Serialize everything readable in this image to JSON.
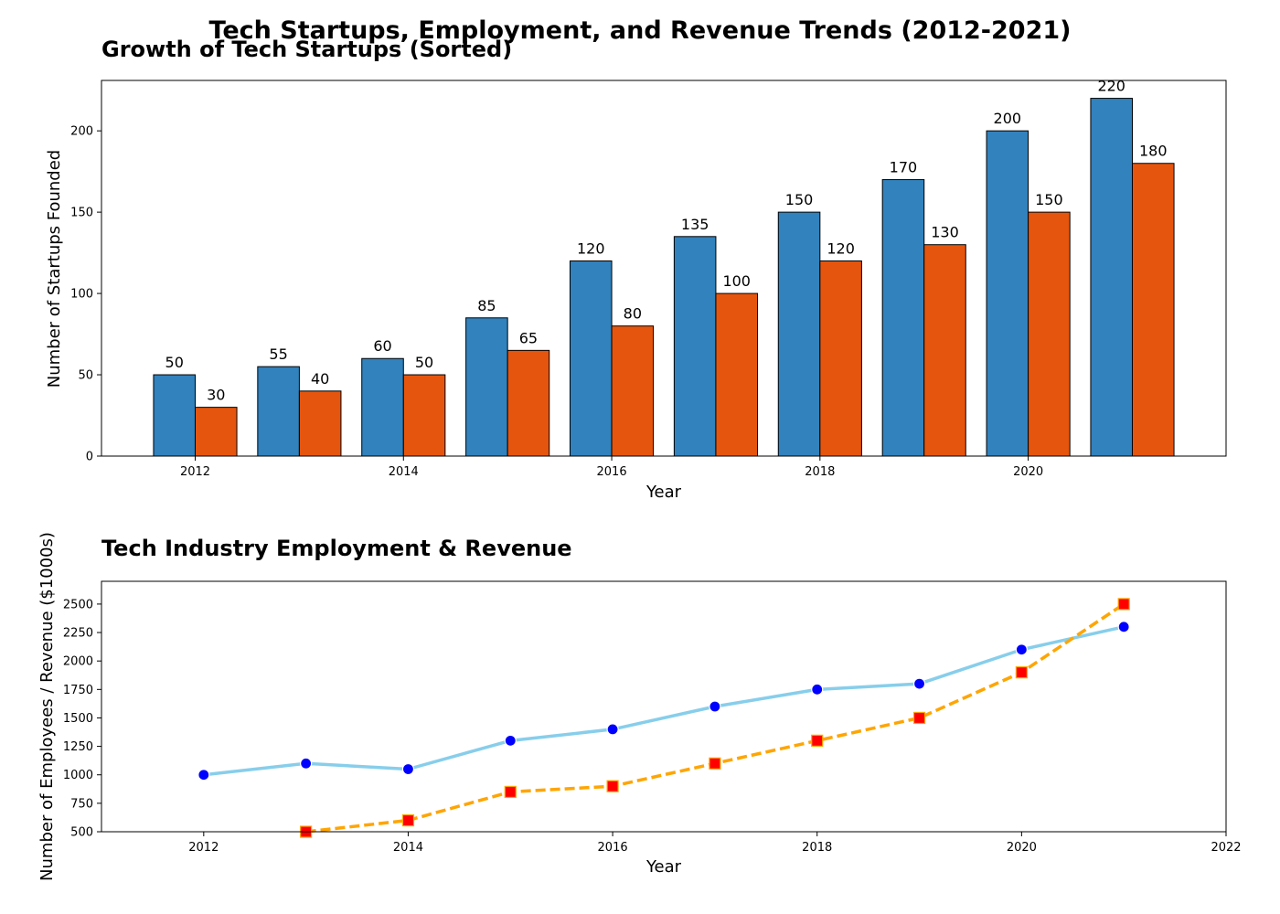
{
  "figure": {
    "suptitle": "Tech Startups, Employment, and Revenue Trends (2012-2021)"
  },
  "chart_data": [
    {
      "type": "bar",
      "title": "Growth of Tech Startups (Sorted)",
      "xlabel": "Year",
      "ylabel": "Number of Startups Founded",
      "x": [
        2012,
        2013,
        2014,
        2015,
        2016,
        2017,
        2018,
        2019,
        2020,
        2021
      ],
      "xticks": [
        2012,
        2014,
        2016,
        2018,
        2020
      ],
      "xlim": [
        2011.1,
        2021.9
      ],
      "ylim": [
        0,
        231
      ],
      "yticks": [
        0,
        50,
        100,
        150,
        200
      ],
      "grid": false,
      "series": [
        {
          "values": [
            50,
            55,
            60,
            85,
            120,
            135,
            150,
            170,
            200,
            220
          ],
          "color": "#3182bd"
        },
        {
          "values": [
            30,
            40,
            50,
            65,
            80,
            100,
            120,
            130,
            150,
            180
          ],
          "color": "#e6550d"
        }
      ]
    },
    {
      "type": "line",
      "title": "Tech Industry Employment & Revenue",
      "xlabel": "Year",
      "ylabel": "Number of Employees / Revenue ($1000s)",
      "x": [
        2012,
        2013,
        2014,
        2015,
        2016,
        2017,
        2018,
        2019,
        2020,
        2021
      ],
      "xticks": [
        2012,
        2014,
        2016,
        2018,
        2020,
        2022
      ],
      "xlim": [
        2011,
        2022
      ],
      "ylim": [
        500,
        2700
      ],
      "yticks": [
        500,
        750,
        1000,
        1250,
        1500,
        1750,
        2000,
        2250,
        2500
      ],
      "grid": false,
      "series": [
        {
          "values": [
            1000,
            1100,
            1050,
            1300,
            1400,
            1600,
            1750,
            1800,
            2100,
            2300
          ],
          "color": "#87ceeb",
          "marker": "circle",
          "marker_color": "#0000ff",
          "style": "solid"
        },
        {
          "values": [
            null,
            500,
            600,
            850,
            900,
            1100,
            1300,
            1500,
            1900,
            2500
          ],
          "color": "#ffa500",
          "marker": "square",
          "marker_color": "#ff0000",
          "style": "dashed"
        }
      ]
    }
  ]
}
